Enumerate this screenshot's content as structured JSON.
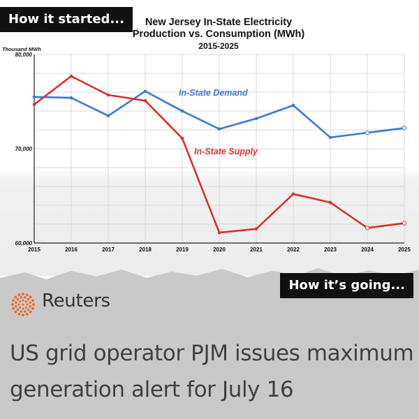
{
  "tags": {
    "started": "How it started...",
    "going": "How it’s going..."
  },
  "brand": {
    "name": "Reuters",
    "logo_color": "#f26722"
  },
  "headline": "US grid operator PJM issues maximum generation alert for July 16",
  "chart_data": {
    "type": "line",
    "title": "New Jersey In-State Electricity Production vs. Consumption (MWh)",
    "subtitle": "2015-2025",
    "title_lines": [
      "New Jersey In-State Electricity",
      "Production vs. Consumption (MWh)",
      "2015-2025"
    ],
    "ylabel": "Thousand MWh",
    "xlabel": "",
    "x": [
      2015,
      2016,
      2017,
      2018,
      2019,
      2020,
      2021,
      2022,
      2023,
      2024,
      2025
    ],
    "ylim": [
      60000,
      80000
    ],
    "yticks": [
      60000,
      70000,
      80000
    ],
    "ytick_labels": [
      "60,000",
      "70,000",
      "80,000"
    ],
    "grid": true,
    "series": [
      {
        "name": "In-State Demand",
        "color": "#3a78d4",
        "values": [
          75500,
          75400,
          73500,
          76100,
          74000,
          72100,
          73200,
          74600,
          71200,
          71700,
          72200
        ]
      },
      {
        "name": "In-State Supply",
        "color": "#d9312b",
        "values": [
          74700,
          77700,
          75700,
          75100,
          71100,
          61100,
          61500,
          65200,
          64300,
          61600,
          62100
        ]
      }
    ]
  }
}
